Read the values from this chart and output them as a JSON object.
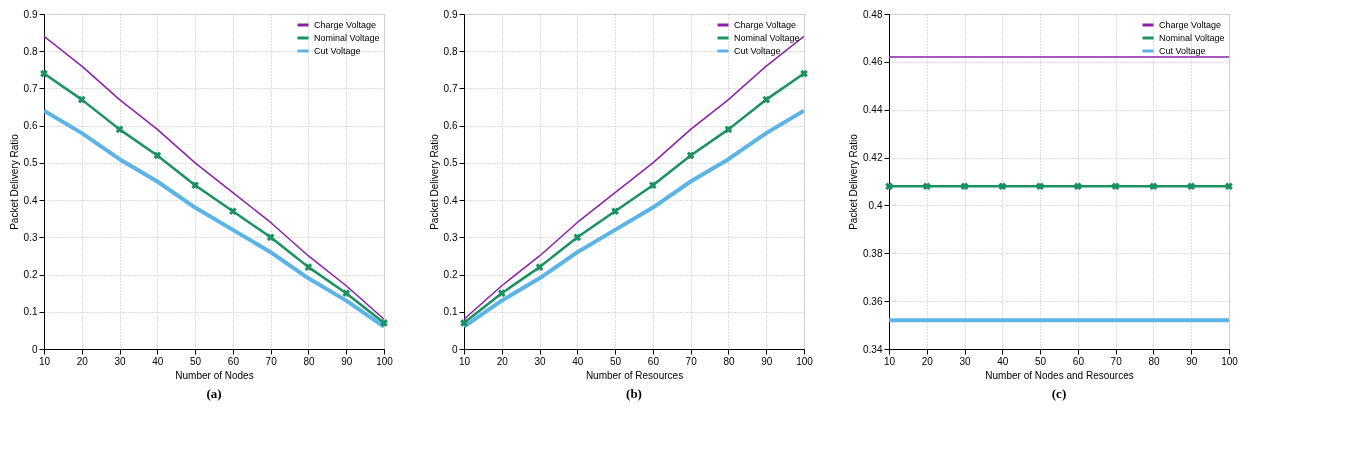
{
  "chart_data": [
    {
      "type": "line",
      "xlabel": "Number of Nodes",
      "ylabel": "Packet Delivery Ratio",
      "annotations": [
        "(a)"
      ],
      "x": [
        10,
        20,
        30,
        40,
        50,
        60,
        70,
        80,
        90,
        100
      ],
      "xlim": [
        10,
        100
      ],
      "xticks": [
        10,
        20,
        30,
        40,
        50,
        60,
        70,
        80,
        90,
        100
      ],
      "ylim": [
        0,
        0.9
      ],
      "yticks": [
        0,
        0.1,
        0.2,
        0.3,
        0.4,
        0.5,
        0.6,
        0.7,
        0.8,
        0.9
      ],
      "grid": true,
      "legend": "top right",
      "series": [
        {
          "name": "Charge Voltage",
          "color": "#8b1fa8",
          "marker": "none",
          "values": [
            0.84,
            0.76,
            0.67,
            0.59,
            0.5,
            0.42,
            0.34,
            0.25,
            0.17,
            0.08
          ]
        },
        {
          "name": "Nominal Voltage",
          "color": "#1a9160",
          "marker": "cross",
          "values": [
            0.74,
            0.67,
            0.59,
            0.52,
            0.44,
            0.37,
            0.3,
            0.22,
            0.15,
            0.07
          ]
        },
        {
          "name": "Cut Voltage",
          "color": "#5ab4e5",
          "marker": "none",
          "values": [
            0.64,
            0.58,
            0.51,
            0.45,
            0.38,
            0.32,
            0.26,
            0.19,
            0.13,
            0.06
          ]
        }
      ]
    },
    {
      "type": "line",
      "xlabel": "Number of Resources",
      "ylabel": "Packet Delivery Ratio",
      "annotations": [
        "(b)"
      ],
      "x": [
        10,
        20,
        30,
        40,
        50,
        60,
        70,
        80,
        90,
        100
      ],
      "xlim": [
        10,
        100
      ],
      "xticks": [
        10,
        20,
        30,
        40,
        50,
        60,
        70,
        80,
        90,
        100
      ],
      "ylim": [
        0,
        0.9
      ],
      "yticks": [
        0,
        0.1,
        0.2,
        0.3,
        0.4,
        0.5,
        0.6,
        0.7,
        0.8,
        0.9
      ],
      "grid": true,
      "legend": "top right",
      "series": [
        {
          "name": "Charge Voltage",
          "color": "#8b1fa8",
          "marker": "none",
          "values": [
            0.08,
            0.17,
            0.25,
            0.34,
            0.42,
            0.5,
            0.59,
            0.67,
            0.76,
            0.84
          ]
        },
        {
          "name": "Nominal Voltage",
          "color": "#1a9160",
          "marker": "cross",
          "values": [
            0.07,
            0.15,
            0.22,
            0.3,
            0.37,
            0.44,
            0.52,
            0.59,
            0.67,
            0.74
          ]
        },
        {
          "name": "Cut Voltage",
          "color": "#5ab4e5",
          "marker": "none",
          "values": [
            0.06,
            0.13,
            0.19,
            0.26,
            0.32,
            0.38,
            0.45,
            0.51,
            0.58,
            0.64
          ]
        }
      ]
    },
    {
      "type": "line",
      "xlabel": "Number of Nodes and Resources",
      "ylabel": "Packet Delivery Ratio",
      "annotations": [
        "(c)"
      ],
      "x": [
        10,
        20,
        30,
        40,
        50,
        60,
        70,
        80,
        90,
        100
      ],
      "xlim": [
        10,
        100
      ],
      "xticks": [
        10,
        20,
        30,
        40,
        50,
        60,
        70,
        80,
        90,
        100
      ],
      "ylim": [
        0.34,
        0.48
      ],
      "yticks": [
        0.34,
        0.36,
        0.38,
        0.4,
        0.42,
        0.44,
        0.46,
        0.48
      ],
      "grid": true,
      "legend": "top right",
      "series": [
        {
          "name": "Charge Voltage",
          "color": "#8b1fa8",
          "marker": "none",
          "values": [
            0.462,
            0.462,
            0.462,
            0.462,
            0.462,
            0.462,
            0.462,
            0.462,
            0.462,
            0.462
          ]
        },
        {
          "name": "Nominal Voltage",
          "color": "#1a9160",
          "marker": "cross",
          "values": [
            0.408,
            0.408,
            0.408,
            0.408,
            0.408,
            0.408,
            0.408,
            0.408,
            0.408,
            0.408
          ]
        },
        {
          "name": "Cut Voltage",
          "color": "#5ab4e5",
          "marker": "none",
          "values": [
            0.352,
            0.352,
            0.352,
            0.352,
            0.352,
            0.352,
            0.352,
            0.352,
            0.352,
            0.352
          ]
        }
      ]
    }
  ]
}
